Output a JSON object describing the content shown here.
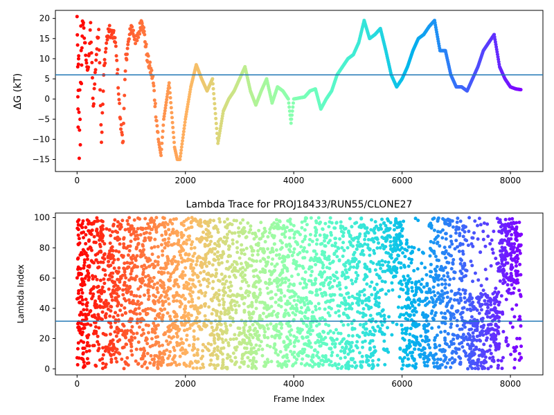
{
  "chart_data": [
    {
      "type": "scatter",
      "title": "",
      "xlabel": "",
      "ylabel": "ΔG (kT)",
      "xlim": [
        -400,
        8600
      ],
      "ylim": [
        -18,
        22
      ],
      "xticks": [
        0,
        2000,
        4000,
        6000,
        8000
      ],
      "yticks": [
        -15,
        -10,
        -5,
        0,
        5,
        10,
        15,
        20
      ],
      "hline": 6.0,
      "hline_color": "#1f77b4",
      "colormap": "rainbow (early frames red → late frames violet)",
      "series": [
        {
          "points": [
            [
              0,
              20
            ],
            [
              10,
              13
            ],
            [
              15,
              0
            ],
            [
              20,
              -6
            ],
            [
              25,
              8
            ],
            [
              30,
              10
            ],
            [
              40,
              -15.6
            ],
            [
              50,
              2
            ],
            [
              60,
              -10.5
            ],
            [
              70,
              17
            ],
            [
              80,
              5
            ],
            [
              90,
              12
            ],
            [
              100,
              20
            ],
            [
              150,
              13
            ],
            [
              200,
              6
            ],
            [
              250,
              18
            ],
            [
              300,
              -2
            ],
            [
              350,
              10
            ],
            [
              400,
              18
            ],
            [
              450,
              -10.5
            ],
            [
              500,
              8
            ],
            [
              550,
              15
            ],
            [
              600,
              17
            ],
            [
              700,
              15
            ],
            [
              750,
              6
            ],
            [
              800,
              -6
            ],
            [
              850,
              -10
            ],
            [
              900,
              10
            ],
            [
              1000,
              18
            ],
            [
              1100,
              14
            ],
            [
              1200,
              20
            ],
            [
              1300,
              10
            ],
            [
              1400,
              5
            ],
            [
              1500,
              -10
            ],
            [
              1550,
              -14
            ],
            [
              1600,
              -5
            ],
            [
              1700,
              4
            ],
            [
              1800,
              -12
            ],
            [
              1850,
              -15
            ],
            [
              1900,
              -15
            ],
            [
              2000,
              -5
            ],
            [
              2100,
              3
            ],
            [
              2200,
              8.5
            ],
            [
              2300,
              5
            ],
            [
              2400,
              2
            ],
            [
              2500,
              5
            ],
            [
              2600,
              -11
            ],
            [
              2700,
              -3
            ],
            [
              2800,
              0
            ],
            [
              2900,
              2
            ],
            [
              3000,
              5
            ],
            [
              3100,
              8
            ],
            [
              3200,
              2
            ],
            [
              3300,
              -1.5
            ],
            [
              3400,
              2
            ],
            [
              3500,
              5
            ],
            [
              3600,
              -1
            ],
            [
              3700,
              3
            ],
            [
              3800,
              2
            ],
            [
              3900,
              0
            ],
            [
              3950,
              -6
            ],
            [
              4000,
              0
            ],
            [
              4200,
              0.5
            ],
            [
              4300,
              2
            ],
            [
              4400,
              2.5
            ],
            [
              4500,
              -2.5
            ],
            [
              4600,
              0
            ],
            [
              4700,
              2
            ],
            [
              4800,
              6
            ],
            [
              4900,
              8
            ],
            [
              5000,
              10
            ],
            [
              5100,
              11
            ],
            [
              5200,
              14
            ],
            [
              5300,
              19.5
            ],
            [
              5400,
              15
            ],
            [
              5500,
              16
            ],
            [
              5600,
              17.5
            ],
            [
              5700,
              12
            ],
            [
              5800,
              6
            ],
            [
              5900,
              3
            ],
            [
              6000,
              5
            ],
            [
              6100,
              8
            ],
            [
              6200,
              12
            ],
            [
              6300,
              15
            ],
            [
              6400,
              16
            ],
            [
              6500,
              18
            ],
            [
              6600,
              19.5
            ],
            [
              6700,
              12
            ],
            [
              6800,
              12
            ],
            [
              6900,
              6
            ],
            [
              7000,
              3
            ],
            [
              7100,
              3
            ],
            [
              7200,
              2
            ],
            [
              7300,
              5
            ],
            [
              7400,
              8
            ],
            [
              7500,
              12
            ],
            [
              7600,
              14
            ],
            [
              7700,
              16
            ],
            [
              7800,
              8
            ],
            [
              7900,
              5
            ],
            [
              8000,
              3
            ],
            [
              8100,
              2.5
            ],
            [
              8200,
              2.3
            ]
          ]
        }
      ]
    },
    {
      "type": "scatter",
      "title": "Lambda Trace for PROJ18433/RUN55/CLONE27",
      "xlabel": "Frame Index",
      "ylabel": "Lambda Index",
      "xlim": [
        -400,
        8600
      ],
      "ylim": [
        -4,
        103
      ],
      "xticks": [
        0,
        2000,
        4000,
        6000,
        8000
      ],
      "yticks": [
        0,
        20,
        40,
        60,
        80,
        100
      ],
      "hline": 31.5,
      "hline_color": "#1f77b4",
      "colormap": "rainbow (early frames red → late frames violet)",
      "series": [
        {
          "frame_range": [
            0,
            8200
          ],
          "lambda_range": [
            0,
            100
          ],
          "dense_bands": [
            [
              5700,
              5950,
              60,
              100
            ],
            [
              6000,
              6500,
              0,
              60
            ],
            [
              7200,
              7800,
              0,
              50
            ],
            [
              7800,
              8150,
              55,
              100
            ]
          ]
        }
      ]
    }
  ]
}
